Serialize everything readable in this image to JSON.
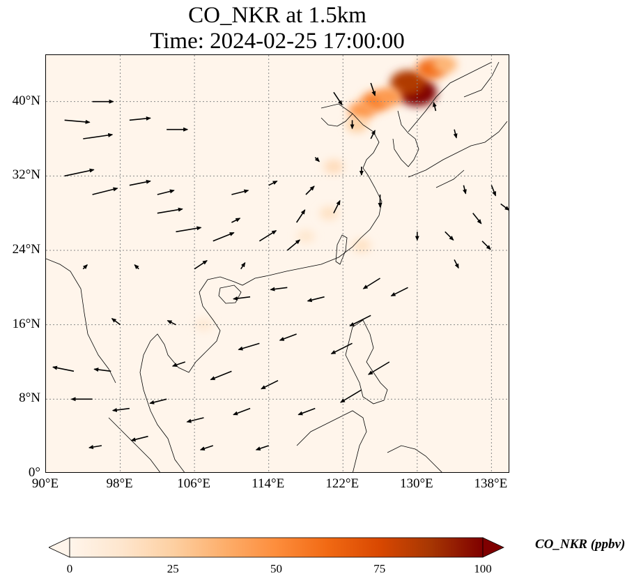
{
  "title": {
    "line1": "CO_NKR at 1.5km",
    "line2": "Time: 2024-02-25 17:00:00"
  },
  "map": {
    "lon_range": [
      90,
      140
    ],
    "lat_range": [
      0,
      45
    ],
    "lat_ticks": [
      {
        "value": 0,
        "label": "0°"
      },
      {
        "value": 8,
        "label": "8°N"
      },
      {
        "value": 16,
        "label": "16°N"
      },
      {
        "value": 24,
        "label": "24°N"
      },
      {
        "value": 32,
        "label": "32°N"
      },
      {
        "value": 40,
        "label": "40°N"
      }
    ],
    "lon_ticks": [
      {
        "value": 90,
        "label": "90°E"
      },
      {
        "value": 98,
        "label": "98°E"
      },
      {
        "value": 106,
        "label": "106°E"
      },
      {
        "value": 114,
        "label": "114°E"
      },
      {
        "value": 122,
        "label": "122°E"
      },
      {
        "value": 130,
        "label": "130°E"
      },
      {
        "value": 138,
        "label": "138°E"
      }
    ],
    "gridlines": true,
    "background_color": "#fff5eb",
    "high_concentration_regions": [
      {
        "lon": 130.0,
        "lat": 41.0,
        "value": 100
      },
      {
        "lon": 129.0,
        "lat": 42.0,
        "value": 85
      },
      {
        "lon": 131.5,
        "lat": 43.5,
        "value": 60
      },
      {
        "lon": 125.5,
        "lat": 40.0,
        "value": 55
      },
      {
        "lon": 124.0,
        "lat": 39.0,
        "value": 45
      },
      {
        "lon": 127.0,
        "lat": 40.5,
        "value": 45
      },
      {
        "lon": 123.5,
        "lat": 37.5,
        "value": 25
      },
      {
        "lon": 121.0,
        "lat": 33.0,
        "value": 18
      },
      {
        "lon": 120.5,
        "lat": 28.0,
        "value": 15
      },
      {
        "lon": 124.0,
        "lat": 24.5,
        "value": 15
      },
      {
        "lon": 118.0,
        "lat": 25.5,
        "value": 12
      },
      {
        "lon": 107.0,
        "lat": 16.0,
        "value": 10
      },
      {
        "lon": 133.0,
        "lat": 44.0,
        "value": 35
      }
    ]
  },
  "wind_vectors": [
    {
      "lon": 92,
      "lat": 38,
      "u": 6,
      "v": -0.5
    },
    {
      "lon": 95,
      "lat": 40,
      "u": 5,
      "v": 0
    },
    {
      "lon": 94,
      "lat": 36,
      "u": 7,
      "v": 1
    },
    {
      "lon": 99,
      "lat": 38,
      "u": 5,
      "v": 0.5
    },
    {
      "lon": 103,
      "lat": 37,
      "u": 5,
      "v": 0
    },
    {
      "lon": 92,
      "lat": 32,
      "u": 7,
      "v": 1.5
    },
    {
      "lon": 95,
      "lat": 30,
      "u": 6,
      "v": 1.5
    },
    {
      "lon": 99,
      "lat": 31,
      "u": 5,
      "v": 1
    },
    {
      "lon": 102,
      "lat": 28,
      "u": 6,
      "v": 1
    },
    {
      "lon": 104,
      "lat": 26,
      "u": 6,
      "v": 1
    },
    {
      "lon": 108,
      "lat": 25,
      "u": 5,
      "v": 2
    },
    {
      "lon": 110,
      "lat": 27,
      "u": 2,
      "v": 1
    },
    {
      "lon": 113,
      "lat": 25,
      "u": 4,
      "v": 2.5
    },
    {
      "lon": 116,
      "lat": 24,
      "u": 3,
      "v": 2.5
    },
    {
      "lon": 117,
      "lat": 27,
      "u": 2,
      "v": 3
    },
    {
      "lon": 106,
      "lat": 22,
      "u": 3,
      "v": 2
    },
    {
      "lon": 102,
      "lat": 30,
      "u": 4,
      "v": 1
    },
    {
      "lon": 110,
      "lat": 30,
      "u": 4,
      "v": 1
    },
    {
      "lon": 114,
      "lat": 31,
      "u": 2,
      "v": 1
    },
    {
      "lon": 118,
      "lat": 30,
      "u": 2,
      "v": 2
    },
    {
      "lon": 121,
      "lat": 28,
      "u": 1.5,
      "v": 3
    },
    {
      "lon": 119,
      "lat": 34,
      "u": 1,
      "v": -1
    },
    {
      "lon": 125,
      "lat": 36,
      "u": 1,
      "v": 2
    },
    {
      "lon": 121,
      "lat": 41,
      "u": 2,
      "v": -3
    },
    {
      "lon": 123,
      "lat": 38,
      "u": 0,
      "v": -2
    },
    {
      "lon": 126,
      "lat": 30,
      "u": 0,
      "v": -3
    },
    {
      "lon": 124,
      "lat": 33,
      "u": 0,
      "v": -2
    },
    {
      "lon": 125,
      "lat": 42,
      "u": 1,
      "v": -3
    },
    {
      "lon": 132,
      "lat": 39,
      "u": -0.5,
      "v": 2
    },
    {
      "lon": 134,
      "lat": 37,
      "u": 0.5,
      "v": -2
    },
    {
      "lon": 135,
      "lat": 31,
      "u": 0.5,
      "v": -2
    },
    {
      "lon": 136,
      "lat": 28,
      "u": 2,
      "v": -2.5
    },
    {
      "lon": 139,
      "lat": 29,
      "u": 2,
      "v": -1.5
    },
    {
      "lon": 138,
      "lat": 31,
      "u": 1,
      "v": -2.5
    },
    {
      "lon": 133,
      "lat": 26,
      "u": 2,
      "v": -2
    },
    {
      "lon": 134,
      "lat": 23,
      "u": 1,
      "v": -2
    },
    {
      "lon": 137,
      "lat": 25,
      "u": 2,
      "v": -2
    },
    {
      "lon": 130,
      "lat": 26,
      "u": 0,
      "v": -2
    },
    {
      "lon": 126,
      "lat": 21,
      "u": -4,
      "v": -2.5
    },
    {
      "lon": 129,
      "lat": 20,
      "u": -4,
      "v": -2
    },
    {
      "lon": 125,
      "lat": 17,
      "u": -5,
      "v": -2.5
    },
    {
      "lon": 123,
      "lat": 14,
      "u": -5,
      "v": -2.5
    },
    {
      "lon": 127,
      "lat": 12,
      "u": -5,
      "v": -3
    },
    {
      "lon": 124,
      "lat": 9,
      "u": -5,
      "v": -3
    },
    {
      "lon": 120,
      "lat": 19,
      "u": -4,
      "v": -1
    },
    {
      "lon": 116,
      "lat": 20,
      "u": -4,
      "v": -0.5
    },
    {
      "lon": 112,
      "lat": 19,
      "u": -4,
      "v": -0.5
    },
    {
      "lon": 117,
      "lat": 15,
      "u": -4,
      "v": -1.5
    },
    {
      "lon": 113,
      "lat": 14,
      "u": -5,
      "v": -1.5
    },
    {
      "lon": 110,
      "lat": 11,
      "u": -5,
      "v": -2
    },
    {
      "lon": 115,
      "lat": 10,
      "u": -4,
      "v": -2
    },
    {
      "lon": 119,
      "lat": 7,
      "u": -4,
      "v": -1.5
    },
    {
      "lon": 112,
      "lat": 7,
      "u": -4,
      "v": -1.5
    },
    {
      "lon": 107,
      "lat": 6,
      "u": -4,
      "v": -1
    },
    {
      "lon": 103,
      "lat": 8,
      "u": -4,
      "v": -1
    },
    {
      "lon": 99,
      "lat": 7,
      "u": -4,
      "v": -0.5
    },
    {
      "lon": 95,
      "lat": 8,
      "u": -5,
      "v": 0
    },
    {
      "lon": 97,
      "lat": 11,
      "u": -4,
      "v": 0.5
    },
    {
      "lon": 93,
      "lat": 11,
      "u": -5,
      "v": 1
    },
    {
      "lon": 105,
      "lat": 12,
      "u": -3,
      "v": -1
    },
    {
      "lon": 101,
      "lat": 4,
      "u": -4,
      "v": -1
    },
    {
      "lon": 108,
      "lat": 3,
      "u": -3,
      "v": -1
    },
    {
      "lon": 114,
      "lat": 3,
      "u": -3,
      "v": -1
    },
    {
      "lon": 96,
      "lat": 3,
      "u": -3,
      "v": -0.5
    },
    {
      "lon": 104,
      "lat": 16,
      "u": -2,
      "v": 1
    },
    {
      "lon": 98,
      "lat": 16,
      "u": -2,
      "v": 1.5
    },
    {
      "lon": 94,
      "lat": 22,
      "u": 1,
      "v": 1
    },
    {
      "lon": 100,
      "lat": 22,
      "u": -1,
      "v": 1
    },
    {
      "lon": 111,
      "lat": 22,
      "u": 1,
      "v": 1.5
    }
  ],
  "colorbar": {
    "label": "CO_NKR (ppbv)",
    "min": 0,
    "max": 100,
    "colormap": "OrRd",
    "colors": [
      "#fff5eb",
      "#fee6ce",
      "#fdd0a2",
      "#fdae6b",
      "#fd8d3c",
      "#f16913",
      "#d94801",
      "#a63603",
      "#7f0000"
    ],
    "ticks": [
      {
        "value": 0,
        "label": "0"
      },
      {
        "value": 25,
        "label": "25"
      },
      {
        "value": 50,
        "label": "50"
      },
      {
        "value": 75,
        "label": "75"
      },
      {
        "value": 100,
        "label": "100"
      }
    ],
    "extend": "both"
  }
}
